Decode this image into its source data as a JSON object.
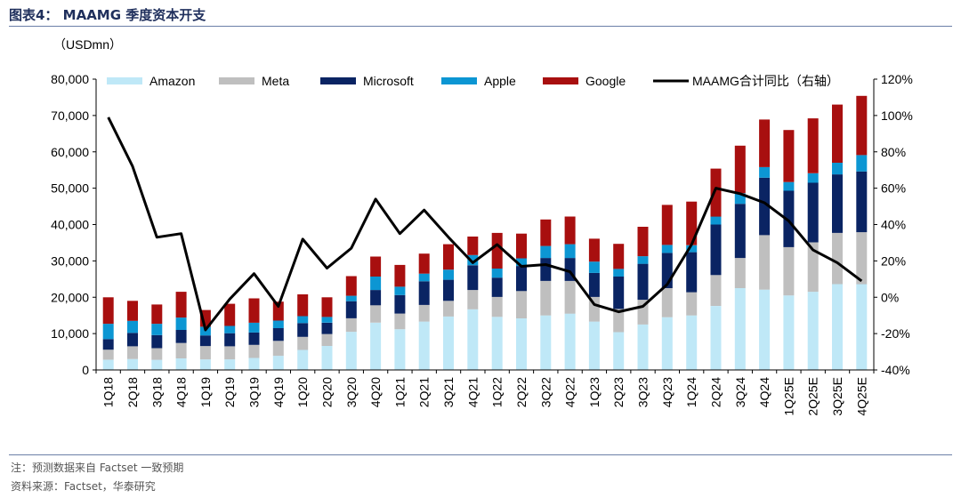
{
  "title": "图表4：  MAAMG 季度资本开支",
  "footnote": "注：预测数据来自 Factset 一致预期",
  "source": "资料来源：Factset，华泰研究",
  "chart_data": {
    "type": "bar",
    "stacked": true,
    "unit_label": "（USDmn）",
    "categories": [
      "1Q18",
      "2Q18",
      "3Q18",
      "4Q18",
      "1Q19",
      "2Q19",
      "3Q19",
      "4Q19",
      "1Q20",
      "2Q20",
      "3Q20",
      "4Q20",
      "1Q21",
      "2Q21",
      "3Q21",
      "4Q21",
      "1Q22",
      "2Q22",
      "3Q22",
      "4Q22",
      "1Q23",
      "2Q23",
      "3Q23",
      "4Q23",
      "1Q24",
      "2Q24",
      "3Q24",
      "4Q24",
      "1Q25E",
      "2Q25E",
      "3Q25E",
      "4Q25E"
    ],
    "ylim": [
      0,
      80000
    ],
    "yticks": [
      0,
      10000,
      20000,
      30000,
      40000,
      50000,
      60000,
      70000,
      80000
    ],
    "ytick_labels": [
      "0",
      "10,000",
      "20,000",
      "30,000",
      "40,000",
      "50,000",
      "60,000",
      "70,000",
      "80,000"
    ],
    "y2lim": [
      -0.4,
      1.2
    ],
    "y2ticks": [
      -0.4,
      -0.2,
      0,
      0.2,
      0.4,
      0.6,
      0.8,
      1.0,
      1.2
    ],
    "y2tick_labels": [
      "-40%",
      "-20%",
      "0%",
      "20%",
      "40%",
      "60%",
      "80%",
      "100%",
      "120%"
    ],
    "legend_position": "top",
    "grid": false,
    "series": [
      {
        "name": "Amazon",
        "color": "#bfe8f7",
        "values": [
          2800,
          3000,
          2800,
          3200,
          2900,
          2900,
          3300,
          3900,
          5500,
          6600,
          10500,
          13000,
          11200,
          13300,
          14700,
          16700,
          14600,
          14200,
          15000,
          15500,
          13300,
          10400,
          12500,
          14500,
          15000,
          17600,
          22500,
          22100,
          20500,
          21500,
          23600,
          23600
        ]
      },
      {
        "name": "Meta",
        "color": "#bfbfbf",
        "values": [
          2800,
          3500,
          3200,
          4200,
          3700,
          3600,
          3600,
          4100,
          3600,
          3300,
          3700,
          4800,
          4300,
          4600,
          4300,
          5300,
          5500,
          7500,
          9500,
          9000,
          6800,
          6400,
          6800,
          8000,
          6400,
          8500,
          8300,
          15000,
          13300,
          13600,
          14100,
          14300
        ]
      },
      {
        "name": "Microsoft",
        "color": "#0a2463",
        "values": [
          2900,
          3700,
          3600,
          3600,
          2900,
          3600,
          3400,
          3500,
          3800,
          3100,
          4700,
          4200,
          5100,
          6500,
          5800,
          6800,
          5300,
          6900,
          6300,
          6300,
          6600,
          8900,
          9900,
          9700,
          11000,
          13900,
          14900,
          15800,
          15500,
          16400,
          16100,
          16700
        ]
      },
      {
        "name": "Apple",
        "color": "#0c96d3",
        "values": [
          4200,
          3300,
          3100,
          3400,
          2400,
          2000,
          2700,
          2100,
          1900,
          1600,
          1500,
          3700,
          2300,
          2100,
          2800,
          2800,
          2500,
          2100,
          3300,
          3800,
          3100,
          2100,
          2100,
          2200,
          1900,
          2200,
          2900,
          2900,
          2400,
          2600,
          3200,
          4500
        ]
      },
      {
        "name": "Google",
        "color": "#a80f0f",
        "values": [
          7300,
          5500,
          5300,
          7100,
          4600,
          6100,
          6700,
          5200,
          6000,
          5400,
          5400,
          5500,
          6000,
          5500,
          7000,
          5100,
          9800,
          6800,
          7300,
          7600,
          6300,
          6900,
          8100,
          11000,
          12000,
          13200,
          13100,
          13100,
          14300,
          15100,
          16000,
          16300
        ]
      }
    ],
    "line": {
      "name": "MAAMG合计同比（右轴）",
      "color": "#000000",
      "values": [
        0.99,
        0.72,
        0.33,
        0.35,
        -0.18,
        -0.01,
        0.13,
        -0.05,
        0.32,
        0.16,
        0.27,
        0.54,
        0.35,
        0.48,
        0.33,
        0.19,
        0.29,
        0.17,
        0.18,
        0.14,
        -0.04,
        -0.08,
        -0.05,
        0.07,
        0.29,
        0.6,
        0.57,
        0.52,
        0.42,
        0.26,
        0.19,
        0.09
      ]
    }
  }
}
